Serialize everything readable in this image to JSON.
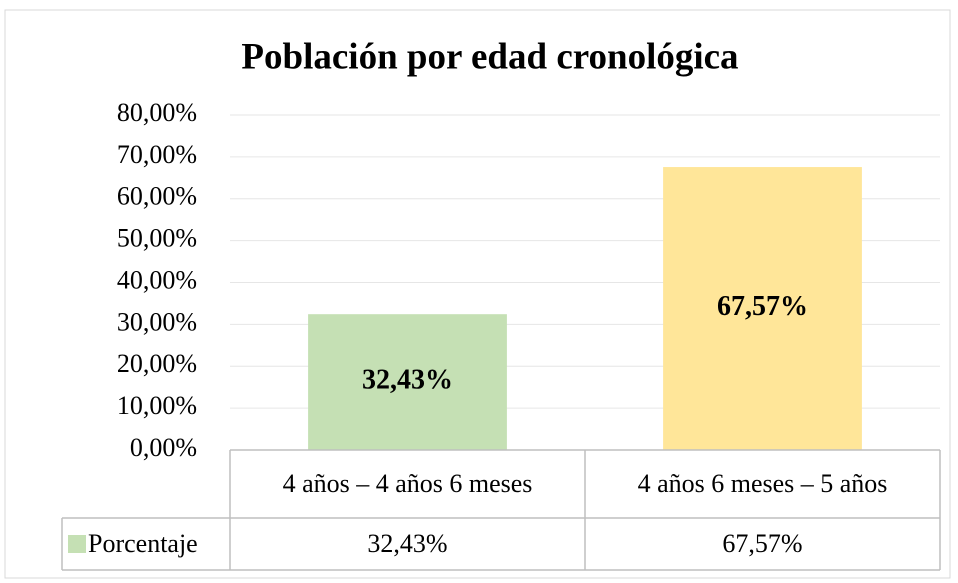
{
  "chart_data": {
    "type": "bar",
    "title": "Población por edad cronológica",
    "categories": [
      "4 años – 4 años 6 meses",
      "4 años 6 meses – 5 años"
    ],
    "series": [
      {
        "name": "Porcentaje",
        "colors": [
          "#c5e0b4",
          "#ffe699"
        ],
        "values": [
          32.43,
          67.57
        ],
        "value_labels": [
          "32,43%",
          "67,57%"
        ]
      }
    ],
    "ylim": [
      0,
      80
    ],
    "yticks": [
      {
        "value": 0,
        "label": "0,00%"
      },
      {
        "value": 10,
        "label": "10,00%"
      },
      {
        "value": 20,
        "label": "20,00%"
      },
      {
        "value": 30,
        "label": "30,00%"
      },
      {
        "value": 40,
        "label": "40,00%"
      },
      {
        "value": 50,
        "label": "50,00%"
      },
      {
        "value": 60,
        "label": "60,00%"
      },
      {
        "value": 70,
        "label": "70,00%"
      },
      {
        "value": 80,
        "label": "80,00%"
      }
    ],
    "grid": true,
    "data_table": true
  }
}
